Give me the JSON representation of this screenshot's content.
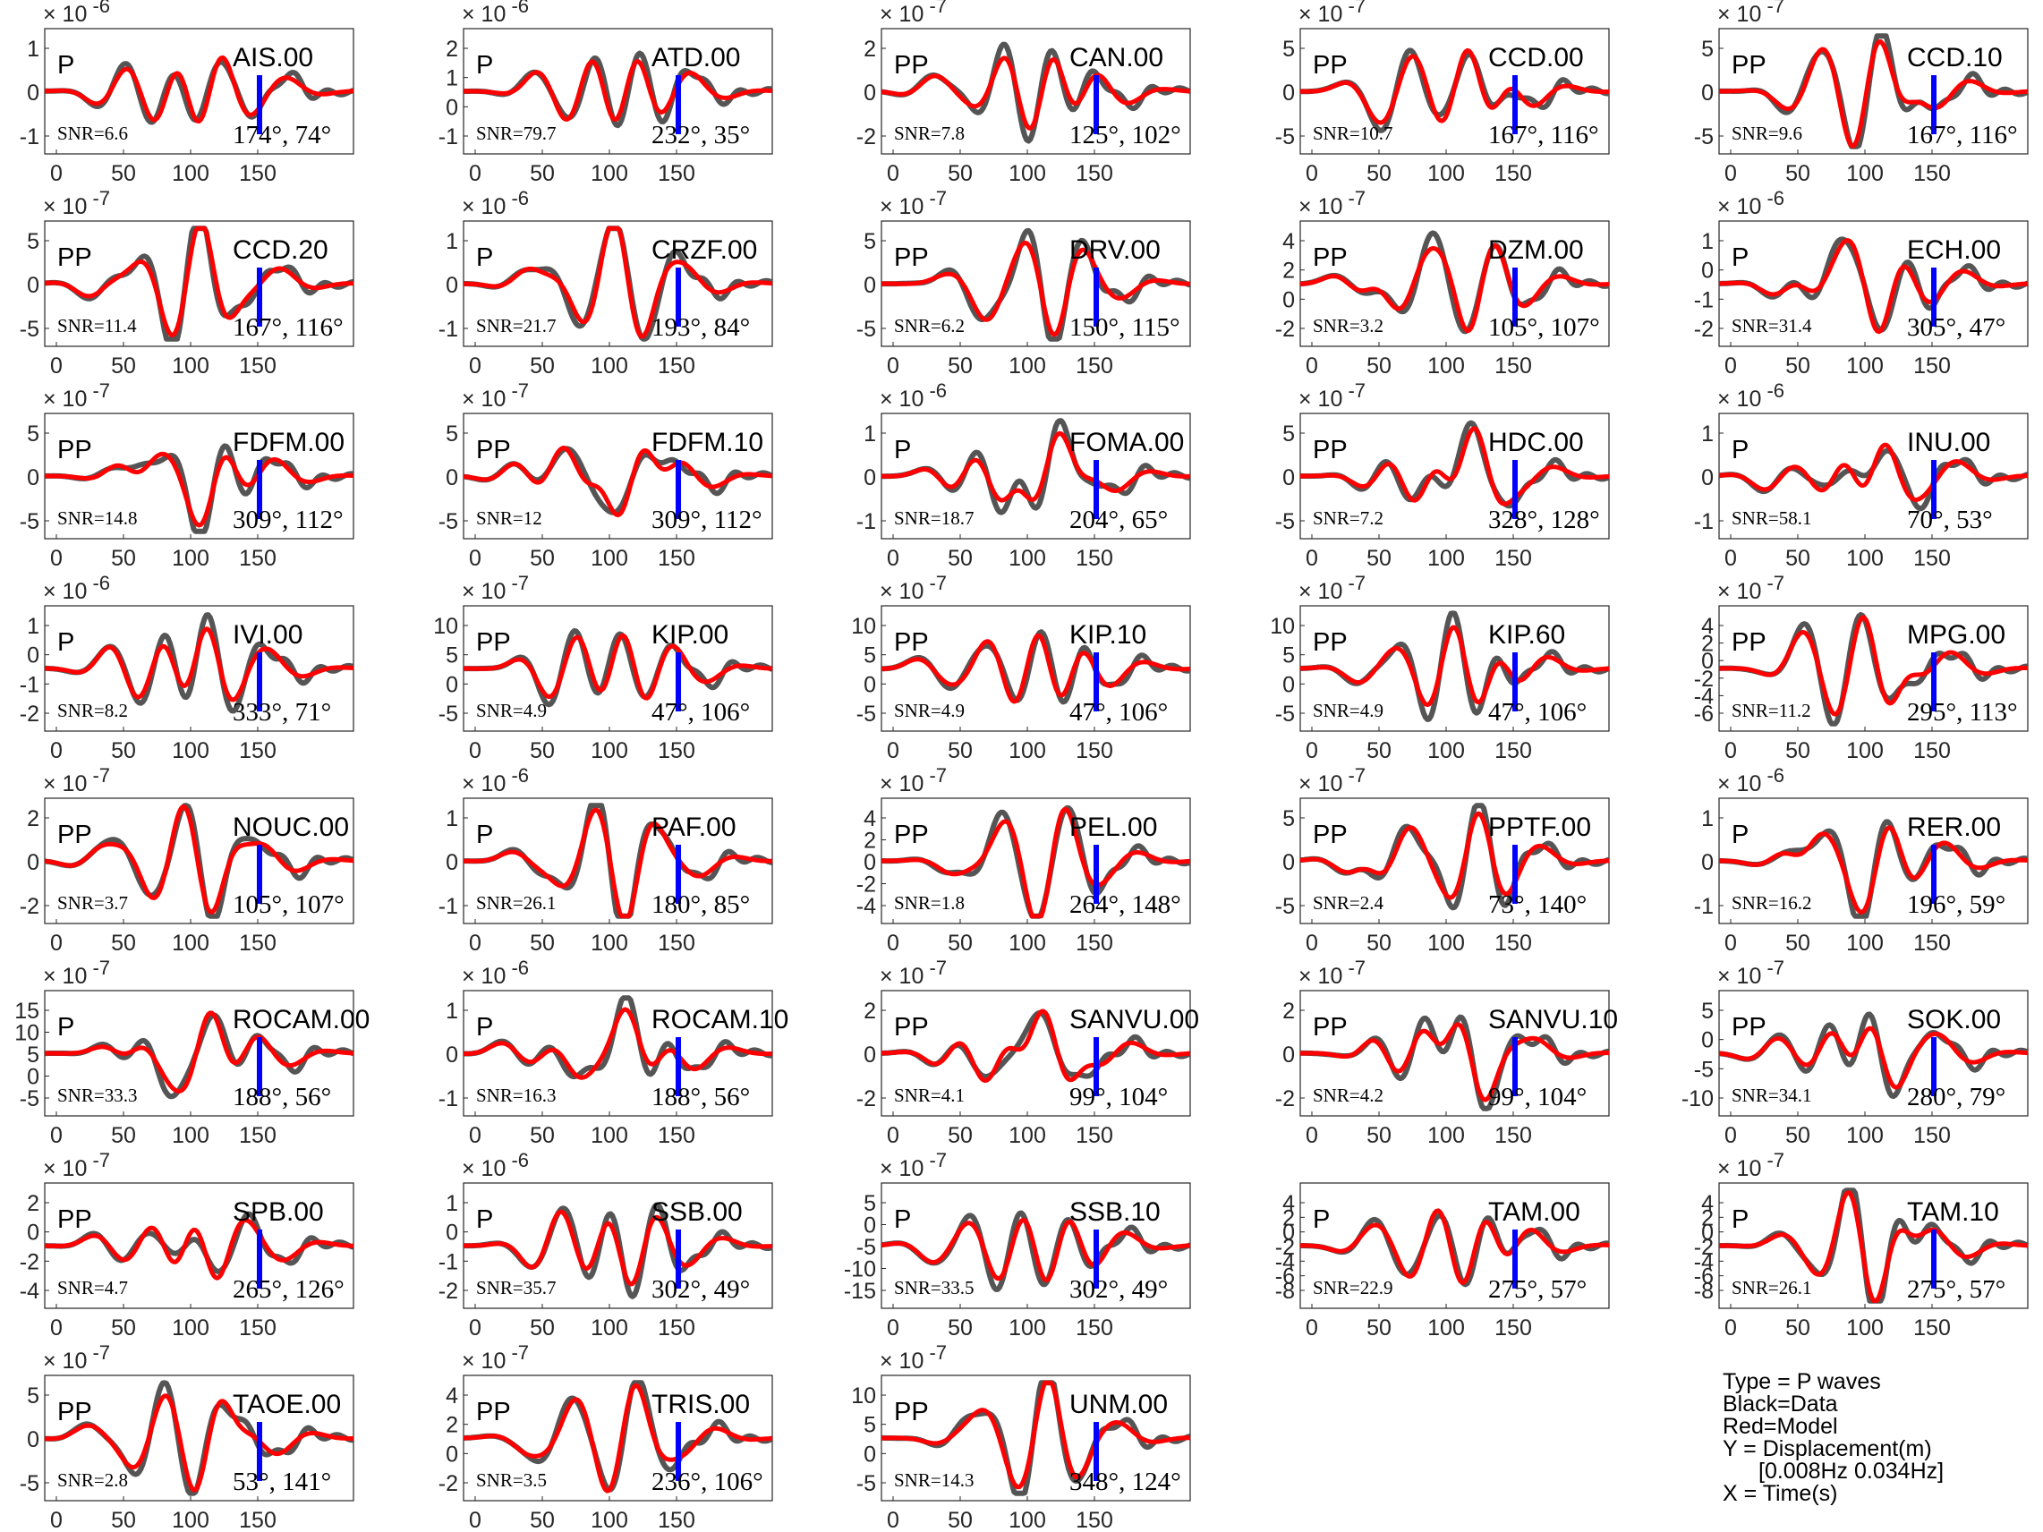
{
  "chart_data": {
    "type": "line",
    "colors": {
      "data": "#555555",
      "model": "#ff0000",
      "marker": "#0000ff"
    },
    "panels": [
      {
        "station": "AIS.00",
        "phase": "P",
        "snr": "SNR=6.6",
        "angles": "174°, 74°",
        "exp": "-6",
        "yticks": [
          "1",
          "0",
          "-1"
        ],
        "xticks": [
          "0",
          "50",
          "100",
          "150"
        ]
      },
      {
        "station": "ATD.00",
        "phase": "P",
        "snr": "SNR=79.7",
        "angles": "232°, 35°",
        "exp": "-6",
        "yticks": [
          "2",
          "1",
          "0",
          "-1"
        ],
        "xticks": [
          "0",
          "50",
          "100",
          "150"
        ]
      },
      {
        "station": "CAN.00",
        "phase": "PP",
        "snr": "SNR=7.8",
        "angles": "125°, 102°",
        "exp": "-7",
        "yticks": [
          "2",
          "0",
          "-2"
        ],
        "xticks": [
          "0",
          "50",
          "100",
          "150"
        ]
      },
      {
        "station": "CCD.00",
        "phase": "PP",
        "snr": "SNR=10.7",
        "angles": "167°, 116°",
        "exp": "-7",
        "yticks": [
          "5",
          "0",
          "-5"
        ],
        "xticks": [
          "0",
          "50",
          "100",
          "150"
        ]
      },
      {
        "station": "CCD.10",
        "phase": "PP",
        "snr": "SNR=9.6",
        "angles": "167°, 116°",
        "exp": "-7",
        "yticks": [
          "5",
          "0",
          "-5"
        ],
        "xticks": [
          "0",
          "50",
          "100",
          "150"
        ]
      },
      {
        "station": "CCD.20",
        "phase": "PP",
        "snr": "SNR=11.4",
        "angles": "167°, 116°",
        "exp": "-7",
        "yticks": [
          "5",
          "0",
          "-5"
        ],
        "xticks": [
          "0",
          "50",
          "100",
          "150"
        ]
      },
      {
        "station": "CRZF.00",
        "phase": "P",
        "snr": "SNR=21.7",
        "angles": "193°, 84°",
        "exp": "-6",
        "yticks": [
          "1",
          "0",
          "-1"
        ],
        "xticks": [
          "0",
          "50",
          "100",
          "150"
        ]
      },
      {
        "station": "DRV.00",
        "phase": "PP",
        "snr": "SNR=6.2",
        "angles": "150°, 115°",
        "exp": "-7",
        "yticks": [
          "5",
          "0",
          "-5"
        ],
        "xticks": [
          "0",
          "50",
          "100",
          "150"
        ]
      },
      {
        "station": "DZM.00",
        "phase": "PP",
        "snr": "SNR=3.2",
        "angles": "105°, 107°",
        "exp": "-7",
        "yticks": [
          "4",
          "2",
          "0",
          "-2"
        ],
        "xticks": [
          "0",
          "50",
          "100",
          "150"
        ]
      },
      {
        "station": "ECH.00",
        "phase": "P",
        "snr": "SNR=31.4",
        "angles": "305°, 47°",
        "exp": "-6",
        "yticks": [
          "1",
          "0",
          "-1",
          "-2"
        ],
        "xticks": [
          "0",
          "50",
          "100",
          "150"
        ]
      },
      {
        "station": "FDFM.00",
        "phase": "PP",
        "snr": "SNR=14.8",
        "angles": "309°, 112°",
        "exp": "-7",
        "yticks": [
          "5",
          "0",
          "-5"
        ],
        "xticks": [
          "0",
          "50",
          "100",
          "150"
        ]
      },
      {
        "station": "FDFM.10",
        "phase": "PP",
        "snr": "SNR=12",
        "angles": "309°, 112°",
        "exp": "-7",
        "yticks": [
          "5",
          "0",
          "-5"
        ],
        "xticks": [
          "0",
          "50",
          "100",
          "150"
        ]
      },
      {
        "station": "FOMA.00",
        "phase": "P",
        "snr": "SNR=18.7",
        "angles": "204°, 65°",
        "exp": "-6",
        "yticks": [
          "1",
          "0",
          "-1"
        ],
        "xticks": [
          "0",
          "50",
          "100",
          "150"
        ]
      },
      {
        "station": "HDC.00",
        "phase": "PP",
        "snr": "SNR=7.2",
        "angles": "328°, 128°",
        "exp": "-7",
        "yticks": [
          "5",
          "0",
          "-5"
        ],
        "xticks": [
          "0",
          "50",
          "100",
          "150"
        ]
      },
      {
        "station": "INU.00",
        "phase": "P",
        "snr": "SNR=58.1",
        "angles": "70°, 53°",
        "exp": "-6",
        "yticks": [
          "1",
          "0",
          "-1"
        ],
        "xticks": [
          "0",
          "50",
          "100",
          "150"
        ]
      },
      {
        "station": "IVI.00",
        "phase": "P",
        "snr": "SNR=8.2",
        "angles": "333°, 71°",
        "exp": "-6",
        "yticks": [
          "1",
          "0",
          "-1",
          "-2"
        ],
        "xticks": [
          "0",
          "50",
          "100",
          "150"
        ]
      },
      {
        "station": "KIP.00",
        "phase": "PP",
        "snr": "SNR=4.9",
        "angles": "47°, 106°",
        "exp": "-7",
        "yticks": [
          "10",
          "5",
          "0",
          "-5"
        ],
        "xticks": [
          "0",
          "50",
          "100",
          "150"
        ]
      },
      {
        "station": "KIP.10",
        "phase": "PP",
        "snr": "SNR=4.9",
        "angles": "47°, 106°",
        "exp": "-7",
        "yticks": [
          "10",
          "5",
          "0",
          "-5"
        ],
        "xticks": [
          "0",
          "50",
          "100",
          "150"
        ]
      },
      {
        "station": "KIP.60",
        "phase": "PP",
        "snr": "SNR=4.9",
        "angles": "47°, 106°",
        "exp": "-7",
        "yticks": [
          "10",
          "5",
          "0",
          "-5"
        ],
        "xticks": [
          "0",
          "50",
          "100",
          "150"
        ]
      },
      {
        "station": "MPG.00",
        "phase": "PP",
        "snr": "SNR=11.2",
        "angles": "295°, 113°",
        "exp": "-7",
        "yticks": [
          "4",
          "2",
          "0",
          "-2",
          "-4",
          "-6"
        ],
        "xticks": [
          "0",
          "50",
          "100",
          "150"
        ]
      },
      {
        "station": "NOUC.00",
        "phase": "PP",
        "snr": "SNR=3.7",
        "angles": "105°, 107°",
        "exp": "-7",
        "yticks": [
          "2",
          "0",
          "-2"
        ],
        "xticks": [
          "0",
          "50",
          "100",
          "150"
        ]
      },
      {
        "station": "PAF.00",
        "phase": "P",
        "snr": "SNR=26.1",
        "angles": "180°, 85°",
        "exp": "-6",
        "yticks": [
          "1",
          "0",
          "-1"
        ],
        "xticks": [
          "0",
          "50",
          "100",
          "150"
        ]
      },
      {
        "station": "PEL.00",
        "phase": "PP",
        "snr": "SNR=1.8",
        "angles": "264°, 148°",
        "exp": "-7",
        "yticks": [
          "4",
          "2",
          "0",
          "-2",
          "-4"
        ],
        "xticks": [
          "0",
          "50",
          "100",
          "150"
        ]
      },
      {
        "station": "PPTF.00",
        "phase": "PP",
        "snr": "SNR=2.4",
        "angles": "73°, 140°",
        "exp": "-7",
        "yticks": [
          "5",
          "0",
          "-5"
        ],
        "xticks": [
          "0",
          "50",
          "100",
          "150"
        ]
      },
      {
        "station": "RER.00",
        "phase": "P",
        "snr": "SNR=16.2",
        "angles": "196°, 59°",
        "exp": "-6",
        "yticks": [
          "1",
          "0",
          "-1"
        ],
        "xticks": [
          "0",
          "50",
          "100",
          "150"
        ]
      },
      {
        "station": "ROCAM.00",
        "phase": "P",
        "snr": "SNR=33.3",
        "angles": "188°, 56°",
        "exp": "-7",
        "yticks": [
          "15",
          "10",
          "5",
          "0",
          "-5"
        ],
        "xticks": [
          "0",
          "50",
          "100",
          "150"
        ]
      },
      {
        "station": "ROCAM.10",
        "phase": "P",
        "snr": "SNR=16.3",
        "angles": "188°, 56°",
        "exp": "-6",
        "yticks": [
          "1",
          "0",
          "-1"
        ],
        "xticks": [
          "0",
          "50",
          "100",
          "150"
        ]
      },
      {
        "station": "SANVU.00",
        "phase": "PP",
        "snr": "SNR=4.1",
        "angles": "99°, 104°",
        "exp": "-7",
        "yticks": [
          "2",
          "0",
          "-2"
        ],
        "xticks": [
          "0",
          "50",
          "100",
          "150"
        ]
      },
      {
        "station": "SANVU.10",
        "phase": "PP",
        "snr": "SNR=4.2",
        "angles": "99°, 104°",
        "exp": "-7",
        "yticks": [
          "2",
          "0",
          "-2"
        ],
        "xticks": [
          "0",
          "50",
          "100",
          "150"
        ]
      },
      {
        "station": "SOK.00",
        "phase": "PP",
        "snr": "SNR=34.1",
        "angles": "280°, 79°",
        "exp": "-7",
        "yticks": [
          "5",
          "0",
          "-5",
          "-10"
        ],
        "xticks": [
          "0",
          "50",
          "100",
          "150"
        ]
      },
      {
        "station": "SPB.00",
        "phase": "PP",
        "snr": "SNR=4.7",
        "angles": "265°, 126°",
        "exp": "-7",
        "yticks": [
          "2",
          "0",
          "-2",
          "-4"
        ],
        "xticks": [
          "0",
          "50",
          "100",
          "150"
        ]
      },
      {
        "station": "SSB.00",
        "phase": "P",
        "snr": "SNR=35.7",
        "angles": "302°, 49°",
        "exp": "-6",
        "yticks": [
          "1",
          "0",
          "-1",
          "-2"
        ],
        "xticks": [
          "0",
          "50",
          "100",
          "150"
        ]
      },
      {
        "station": "SSB.10",
        "phase": "P",
        "snr": "SNR=33.5",
        "angles": "302°, 49°",
        "exp": "-7",
        "yticks": [
          "5",
          "0",
          "-5",
          "-10",
          "-15"
        ],
        "xticks": [
          "0",
          "50",
          "100",
          "150"
        ]
      },
      {
        "station": "TAM.00",
        "phase": "P",
        "snr": "SNR=22.9",
        "angles": "275°, 57°",
        "exp": "",
        "yticks": [
          "4",
          "2",
          "0",
          "-2",
          "-4",
          "-6",
          "-8"
        ],
        "xticks": [
          "0",
          "50",
          "100",
          "150"
        ]
      },
      {
        "station": "TAM.10",
        "phase": "P",
        "snr": "SNR=26.1",
        "angles": "275°, 57°",
        "exp": "-7",
        "yticks": [
          "4",
          "2",
          "0",
          "-2",
          "-4",
          "-6",
          "-8"
        ],
        "xticks": [
          "0",
          "50",
          "100",
          "150"
        ]
      },
      {
        "station": "TAOE.00",
        "phase": "PP",
        "snr": "SNR=2.8",
        "angles": "53°, 141°",
        "exp": "-7",
        "yticks": [
          "5",
          "0",
          "-5"
        ],
        "xticks": [
          "0",
          "50",
          "100",
          "150"
        ]
      },
      {
        "station": "TRIS.00",
        "phase": "PP",
        "snr": "SNR=3.5",
        "angles": "236°, 106°",
        "exp": "-7",
        "yticks": [
          "4",
          "2",
          "0",
          "-2"
        ],
        "xticks": [
          "0",
          "50",
          "100",
          "150"
        ]
      },
      {
        "station": "UNM.00",
        "phase": "PP",
        "snr": "SNR=14.3",
        "angles": "348°, 124°",
        "exp": "-7",
        "yticks": [
          "10",
          "5",
          "0",
          "-5"
        ],
        "xticks": [
          "0",
          "50",
          "100",
          "150"
        ]
      }
    ]
  },
  "legend": {
    "type_line": "Type = P waves",
    "black_line": "Black=Data",
    "red_line": "Red=Model",
    "y_line": "Y = Displacement(m)",
    "band_line": "[0.008Hz 0.034Hz]",
    "x_line": "X = Time(s)"
  }
}
